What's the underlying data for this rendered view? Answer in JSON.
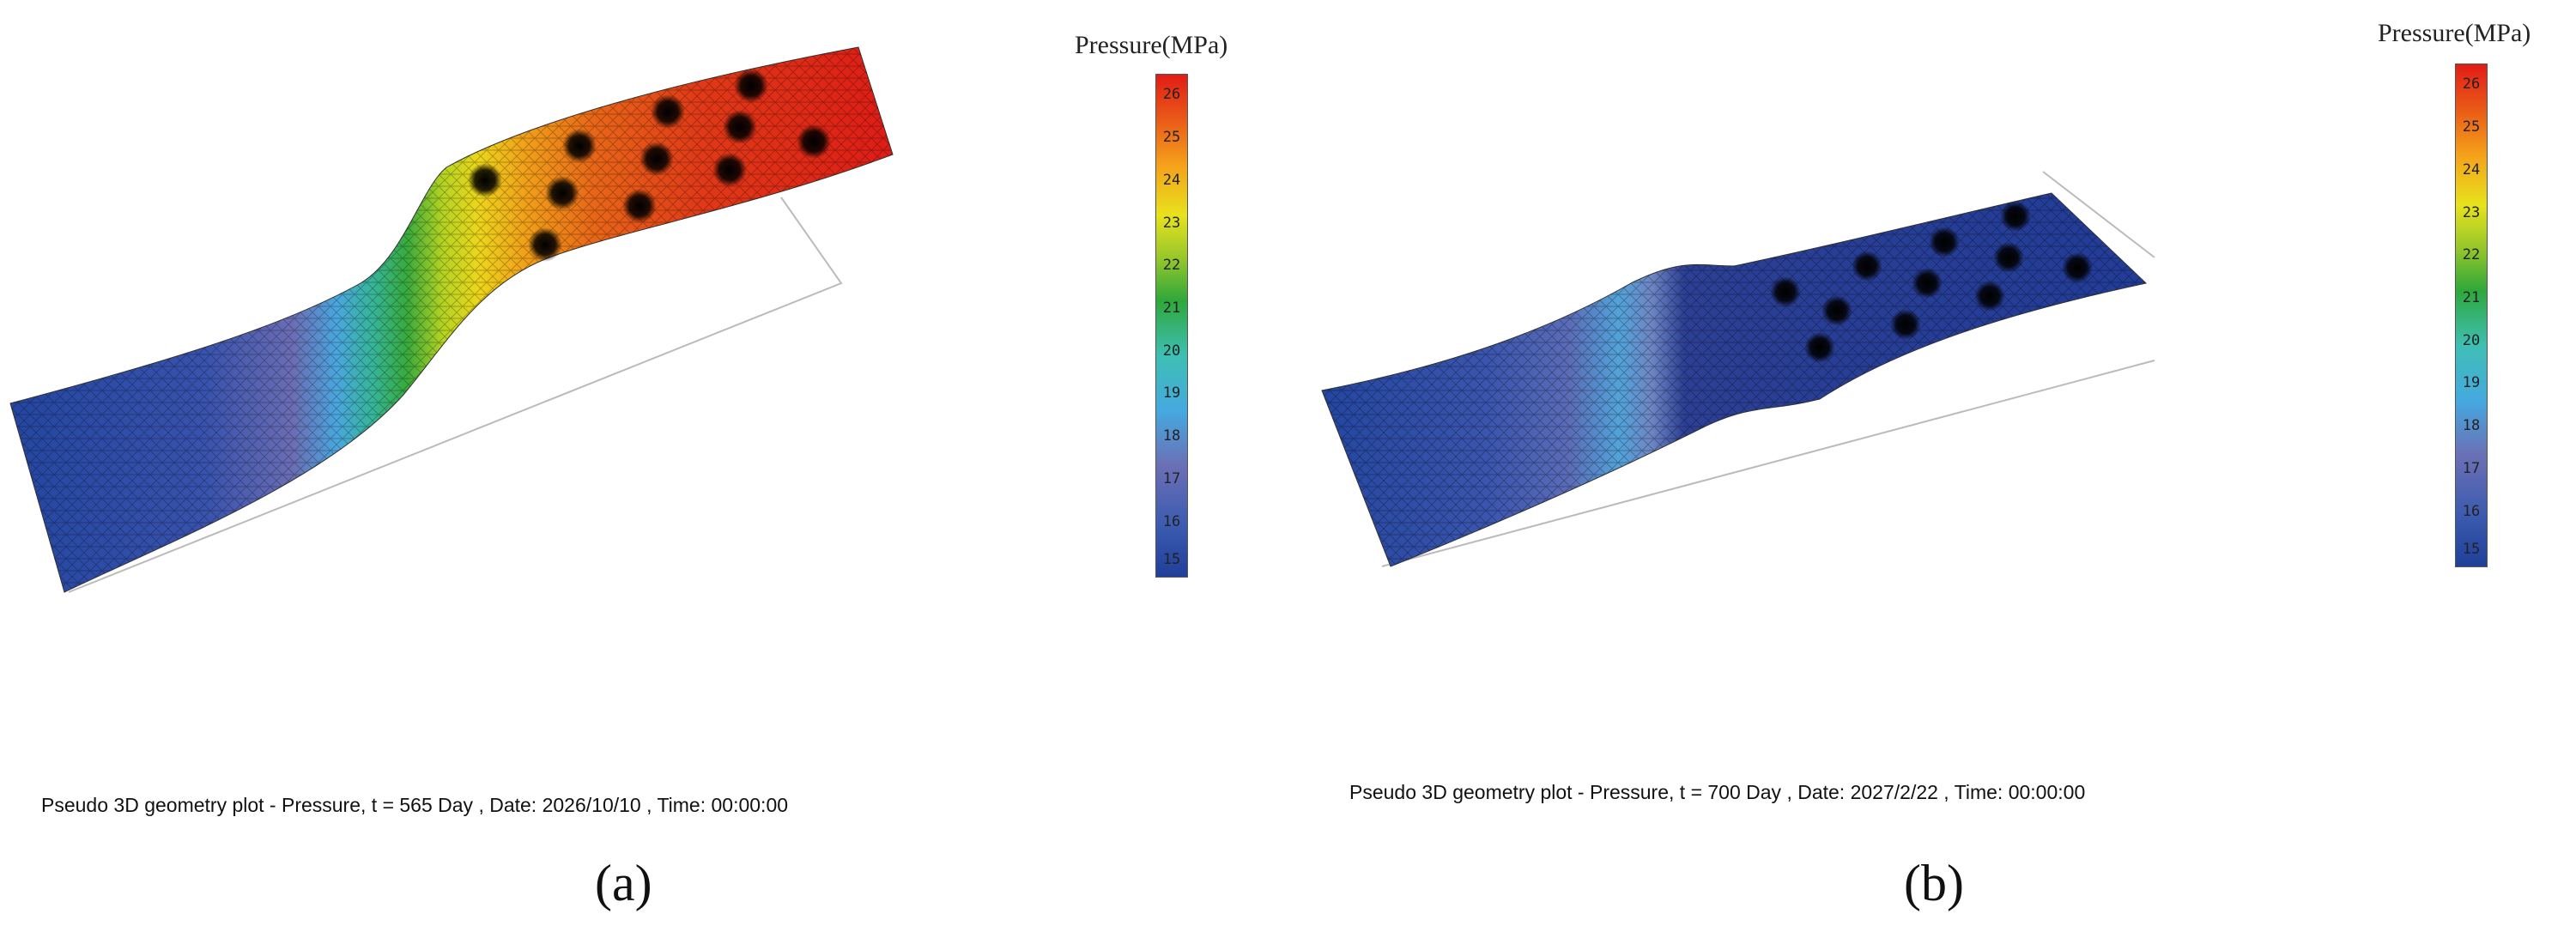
{
  "panels": [
    {
      "id": "a",
      "label": "(a)",
      "caption": "Pseudo 3D geometry plot - Pressure, t = 565 Day , Date: 2026/10/10 , Time: 00:00:00",
      "colorbar": {
        "title": "Pressure(MPa)",
        "ticks": [
          "26",
          "25",
          "24",
          "23",
          "22",
          "21",
          "20",
          "19",
          "18",
          "17",
          "16",
          "15"
        ]
      }
    },
    {
      "id": "b",
      "label": "(b)",
      "caption": "Pseudo 3D geometry plot - Pressure, t = 700 Day , Date: 2027/2/22 , Time: 00:00:00",
      "colorbar": {
        "title": "Pressure(MPa)",
        "ticks": [
          "26",
          "25",
          "24",
          "23",
          "22",
          "21",
          "20",
          "19",
          "18",
          "17",
          "16",
          "15"
        ]
      }
    }
  ],
  "colors": {
    "low": "#1f3f99",
    "mid": "#2fa83a",
    "high": "#e21c16"
  }
}
